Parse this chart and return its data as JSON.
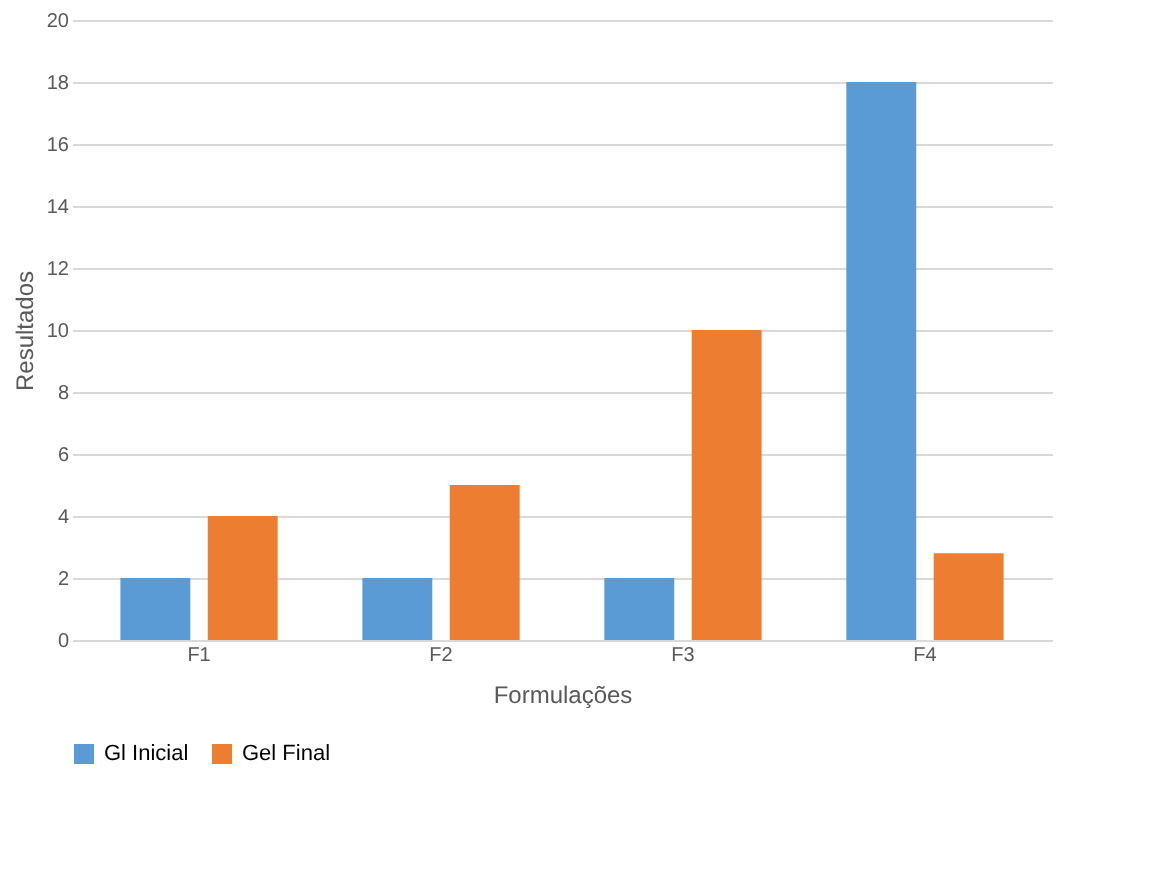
{
  "chart_data": {
    "type": "bar",
    "xlabel": "Formulações",
    "ylabel": "Resultados",
    "categories": [
      "F1",
      "F2",
      "F3",
      "F4"
    ],
    "series": [
      {
        "name": "Gl Inicial",
        "color": "#5b9bd5",
        "values": [
          2,
          2,
          2,
          18
        ]
      },
      {
        "name": "Gel Final",
        "color": "#ed7d31",
        "values": [
          4,
          5,
          10,
          2.8
        ]
      }
    ],
    "ylim": [
      0,
      20
    ],
    "yticks": [
      0,
      2,
      4,
      6,
      8,
      10,
      12,
      14,
      16,
      18,
      20
    ],
    "grid": "y",
    "legend": "bottom"
  }
}
